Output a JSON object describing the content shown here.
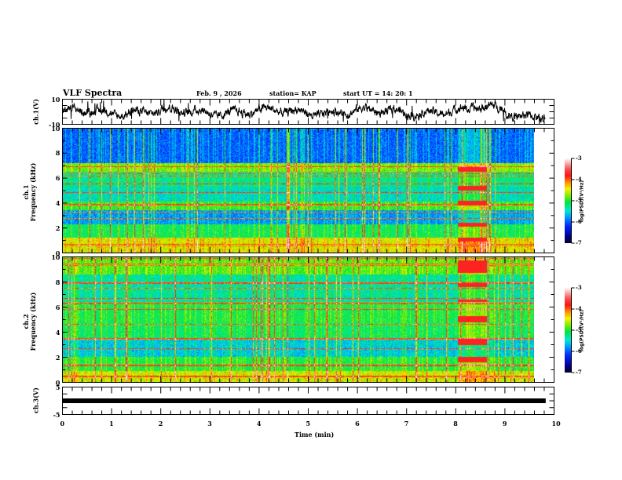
{
  "header": {
    "title": "VLF Spectra",
    "date": "Feb. 9  , 2026",
    "station": "station= KAP",
    "start": "start  UT  =   14: 20: 1"
  },
  "colors": {
    "waveform": "#000000",
    "axis": "#000000"
  },
  "chart_data": [
    {
      "type": "line",
      "name": "ch1-waveform",
      "ylabel": "ch.1(V)",
      "ylim": [
        -10,
        10
      ],
      "yticks": [
        "10",
        "-10"
      ],
      "xlim": [
        0,
        10
      ],
      "data_end_min": 9.83
    },
    {
      "type": "heatmap",
      "name": "ch1-spectrogram",
      "ylabel_line1": "ch.1",
      "ylabel_line2": "Frequency  (kHz)",
      "ylim": [
        0,
        10
      ],
      "yticks": [
        "10",
        "8",
        "6",
        "4",
        "2",
        "0"
      ],
      "xlim": [
        0,
        10
      ],
      "data_end_min": 9.83,
      "colorbar": {
        "label": "log(PSD)(V²/Hz)",
        "range": [
          -7,
          -3
        ],
        "ticks": [
          "-3",
          "-4",
          "-5",
          "-6",
          "-7"
        ]
      },
      "burst_interval_min": [
        8.03,
        8.62
      ]
    },
    {
      "type": "heatmap",
      "name": "ch2-spectrogram",
      "ylabel_line1": "ch.2",
      "ylabel_line2": "Frequency  (kHz)",
      "ylim": [
        0,
        10
      ],
      "yticks": [
        "10",
        "8",
        "6",
        "4",
        "2",
        "0"
      ],
      "xlim": [
        0,
        10
      ],
      "data_end_min": 9.83,
      "colorbar": {
        "label": "log(PSD)(V²/Hz)",
        "range": [
          -7,
          -3
        ],
        "ticks": [
          "-3",
          "-4",
          "-5",
          "-6",
          "-7"
        ]
      },
      "burst_interval_min": [
        8.03,
        8.62
      ]
    },
    {
      "type": "line",
      "name": "ch3-waveform",
      "ylabel": "ch.3(V)",
      "ylim": [
        -5,
        5
      ],
      "yticks": [
        "5",
        "-5"
      ],
      "xlim": [
        0,
        10
      ],
      "level_v": 0,
      "data_end_min": 9.83
    }
  ],
  "xaxis": {
    "label": "Time  (min)",
    "ticks": [
      "0",
      "1",
      "2",
      "3",
      "4",
      "5",
      "6",
      "7",
      "8",
      "9",
      "10"
    ]
  }
}
